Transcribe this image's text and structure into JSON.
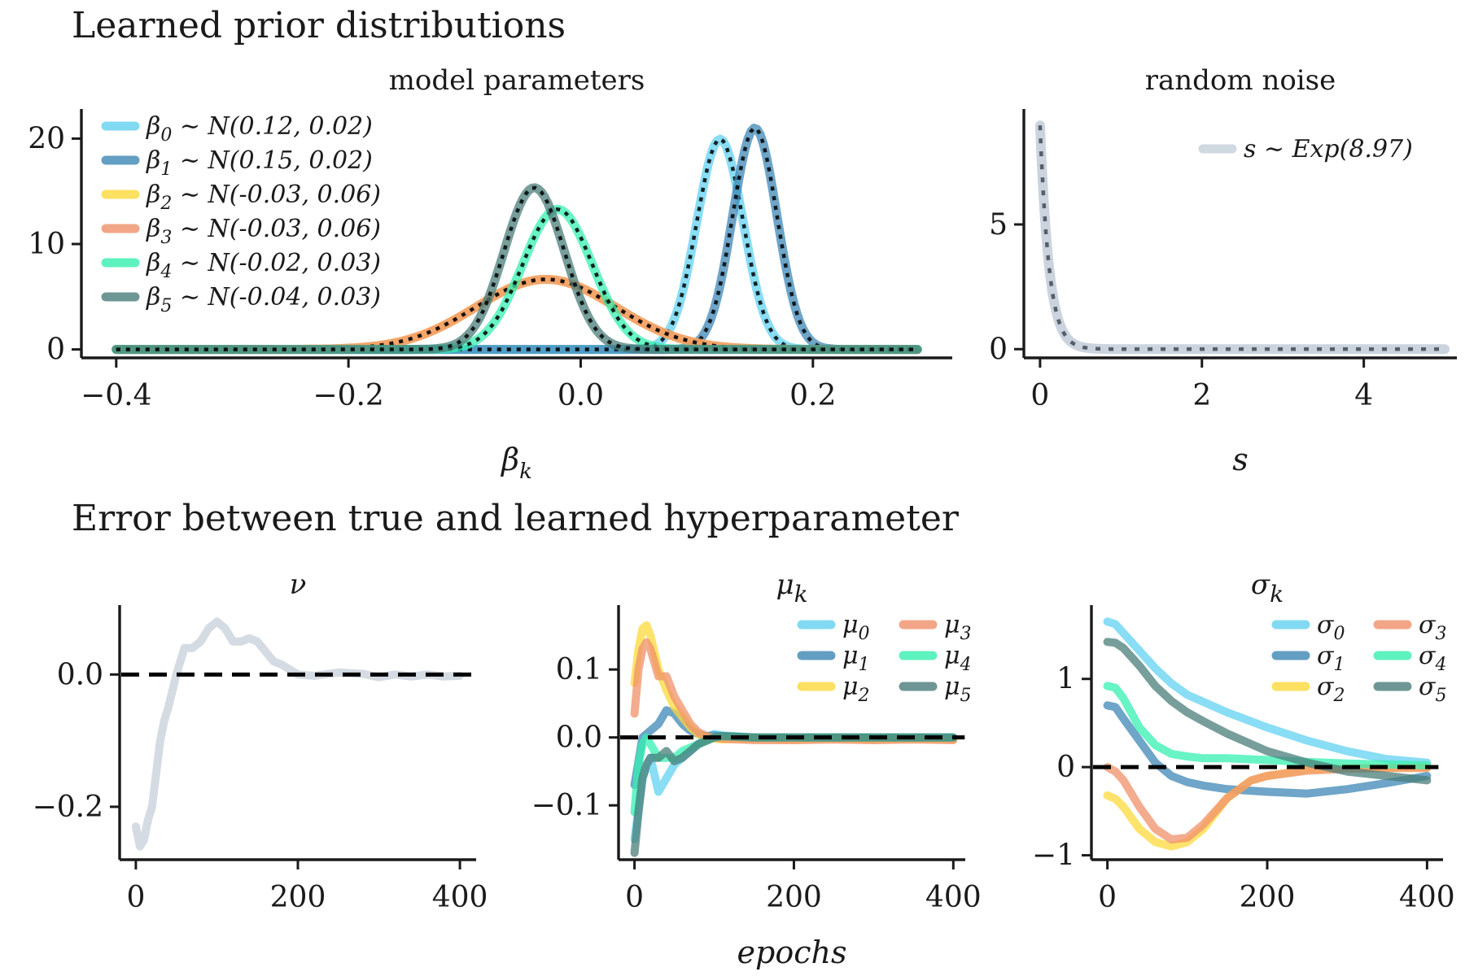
{
  "section_titles": {
    "top": "Learned prior distributions",
    "bottom": "Error between true and learned hyperparameter"
  },
  "colors": {
    "beta0": "#62d1f0",
    "beta1": "#3d87b5",
    "beta2": "#fcd93a",
    "beta3": "#f0906a",
    "beta4": "#36f0b0",
    "beta5": "#4a7d7a",
    "noise": "#c5cfda",
    "reference": "#000000"
  },
  "chart_data": [
    {
      "id": "model-parameters",
      "type": "line",
      "title": "model parameters",
      "xlabel": "β_k",
      "ylabel": "",
      "xlim": [
        -0.43,
        0.32
      ],
      "ylim": [
        -0.8,
        22.5
      ],
      "xticks": [
        -0.4,
        -0.2,
        0.0,
        0.2
      ],
      "xtick_labels": [
        "−0.4",
        "−0.2",
        "0.0",
        "0.2"
      ],
      "yticks": [
        0,
        10,
        20
      ],
      "ytick_labels": [
        "0",
        "10",
        "20"
      ],
      "x_domain": [
        -0.4,
        0.29
      ],
      "legend_position": "upper-left",
      "series": [
        {
          "name": "β0 ~ N(0.12, 0.02)",
          "label_main": "β",
          "label_sub": "0",
          "label_rest": " ∼ N(0.12, 0.02)",
          "mean": 0.12,
          "sd": 0.02,
          "color": "#62d1f0"
        },
        {
          "name": "β1 ~ N(0.15, 0.02)",
          "label_main": "β",
          "label_sub": "1",
          "label_rest": " ∼ N(0.15, 0.02)",
          "mean": 0.15,
          "sd": 0.019,
          "color": "#3d87b5"
        },
        {
          "name": "β2 ~ N(-0.03, 0.06)",
          "label_main": "β",
          "label_sub": "2",
          "label_rest": " ∼ N(-0.03, 0.06)",
          "mean": -0.03,
          "sd": 0.06,
          "color": "#fcd93a"
        },
        {
          "name": "β3 ~ N(-0.03, 0.06)",
          "label_main": "β",
          "label_sub": "3",
          "label_rest": " ∼ N(-0.03, 0.06)",
          "mean": -0.03,
          "sd": 0.06,
          "color": "#f0906a"
        },
        {
          "name": "β4 ~ N(-0.02, 0.03)",
          "label_main": "β",
          "label_sub": "4",
          "label_rest": " ∼ N(-0.02, 0.03)",
          "mean": -0.02,
          "sd": 0.03,
          "color": "#36f0b0"
        },
        {
          "name": "β5 ~ N(-0.04, 0.03)",
          "label_main": "β",
          "label_sub": "5",
          "label_rest": " ∼ N(-0.04, 0.03)",
          "mean": -0.04,
          "sd": 0.026,
          "color": "#4a7d7a"
        }
      ]
    },
    {
      "id": "random-noise",
      "type": "line",
      "title": "random noise",
      "xlabel": "s",
      "ylabel": "",
      "xlim": [
        -0.2,
        5.15
      ],
      "ylim": [
        -0.35,
        9.5
      ],
      "xticks": [
        0,
        2,
        4
      ],
      "xtick_labels": [
        "0",
        "2",
        "4"
      ],
      "yticks": [
        0,
        5
      ],
      "ytick_labels": [
        "0",
        "5"
      ],
      "x_domain": [
        0,
        5
      ],
      "legend_position": "upper-right",
      "series": [
        {
          "name": "s ~ Exp(8.97)",
          "label_main": "s ∼ Exp(8.97)",
          "rate": 8.97,
          "color": "#c5cfda"
        }
      ]
    },
    {
      "id": "nu-error",
      "type": "line",
      "title": "ν",
      "xlabel": "",
      "ylabel": "",
      "xlim": [
        -20,
        420
      ],
      "ylim": [
        -0.28,
        0.1
      ],
      "xticks": [
        0,
        200,
        400
      ],
      "xtick_labels": [
        "0",
        "200",
        "400"
      ],
      "yticks": [
        -0.2,
        0.0
      ],
      "ytick_labels": [
        "−0.2",
        "0.0"
      ],
      "series": [
        {
          "name": "ν",
          "color": "#c5cfda",
          "x": [
            0,
            5,
            10,
            15,
            20,
            25,
            30,
            35,
            40,
            50,
            60,
            70,
            80,
            90,
            100,
            110,
            120,
            130,
            140,
            150,
            160,
            170,
            180,
            200,
            220,
            250,
            280,
            300,
            320,
            340,
            360,
            380,
            400
          ],
          "y": [
            -0.23,
            -0.26,
            -0.25,
            -0.22,
            -0.2,
            -0.15,
            -0.1,
            -0.07,
            -0.05,
            0.0,
            0.04,
            0.04,
            0.05,
            0.07,
            0.08,
            0.07,
            0.05,
            0.05,
            0.055,
            0.05,
            0.035,
            0.02,
            0.015,
            0.0,
            -0.002,
            0.003,
            0.001,
            -0.004,
            0.0,
            -0.003,
            0.0,
            -0.003,
            -0.002
          ]
        }
      ]
    },
    {
      "id": "mu-error",
      "type": "line",
      "title": "μ_k",
      "xlabel": "epochs",
      "ylabel": "",
      "xlim": [
        -20,
        415
      ],
      "ylim": [
        -0.18,
        0.19
      ],
      "xticks": [
        0,
        200,
        400
      ],
      "xtick_labels": [
        "0",
        "200",
        "400"
      ],
      "yticks": [
        -0.1,
        0.0,
        0.1
      ],
      "ytick_labels": [
        "−0.1",
        "0.0",
        "0.1"
      ],
      "legend_position": "upper-right",
      "series": [
        {
          "name": "μ0",
          "label_main": "μ",
          "label_sub": "0",
          "color": "#62d1f0",
          "x": [
            0,
            10,
            20,
            30,
            40,
            50,
            60,
            70,
            80,
            90,
            100,
            110,
            150,
            200,
            250,
            300,
            350,
            400
          ],
          "y": [
            -0.15,
            -0.06,
            -0.03,
            -0.08,
            -0.06,
            -0.04,
            -0.03,
            -0.02,
            -0.01,
            0.0,
            0.005,
            0.003,
            0.0,
            0.0,
            0.0,
            0.0,
            0.0,
            0.0
          ]
        },
        {
          "name": "μ1",
          "label_main": "μ",
          "label_sub": "1",
          "color": "#3d87b5",
          "x": [
            0,
            10,
            20,
            30,
            40,
            50,
            60,
            70,
            80,
            90,
            100,
            110,
            150,
            200,
            250,
            300,
            350,
            400
          ],
          "y": [
            -0.07,
            0.0,
            0.01,
            0.02,
            0.04,
            0.035,
            0.02,
            0.01,
            0.005,
            0.002,
            0.003,
            0.002,
            0.0,
            0.0,
            0.0,
            0.0,
            0.0,
            0.0
          ]
        },
        {
          "name": "μ2",
          "label_main": "μ",
          "label_sub": "2",
          "color": "#fcd93a",
          "x": [
            0,
            5,
            10,
            15,
            20,
            30,
            40,
            50,
            60,
            70,
            80,
            90,
            100,
            110,
            150,
            200,
            250,
            300,
            350,
            400
          ],
          "y": [
            0.08,
            0.13,
            0.16,
            0.165,
            0.15,
            0.1,
            0.07,
            0.045,
            0.03,
            0.015,
            0.005,
            0.0,
            -0.002,
            -0.003,
            -0.002,
            -0.003,
            -0.002,
            -0.003,
            -0.002,
            -0.003
          ]
        },
        {
          "name": "μ3",
          "label_main": "μ",
          "label_sub": "3",
          "color": "#f0906a",
          "x": [
            0,
            5,
            10,
            15,
            20,
            30,
            40,
            50,
            60,
            70,
            80,
            90,
            100,
            110,
            150,
            200,
            250,
            300,
            350,
            400
          ],
          "y": [
            0.035,
            0.1,
            0.13,
            0.14,
            0.13,
            0.09,
            0.09,
            0.06,
            0.04,
            0.02,
            0.008,
            0.002,
            0.0,
            -0.002,
            -0.004,
            -0.004,
            -0.003,
            -0.004,
            -0.003,
            -0.004
          ]
        },
        {
          "name": "μ4",
          "label_main": "μ",
          "label_sub": "4",
          "color": "#36f0b0",
          "x": [
            0,
            5,
            10,
            15,
            20,
            30,
            40,
            50,
            60,
            70,
            80,
            90,
            100,
            110,
            150,
            200,
            250,
            300,
            350,
            400
          ],
          "y": [
            -0.11,
            -0.04,
            -0.01,
            0.0,
            -0.01,
            -0.03,
            -0.03,
            -0.03,
            -0.02,
            -0.015,
            -0.01,
            -0.005,
            0.0,
            0.002,
            0.0,
            0.0,
            0.0,
            0.0,
            0.0,
            0.0
          ]
        },
        {
          "name": "μ5",
          "label_main": "μ",
          "label_sub": "5",
          "color": "#4a7d7a",
          "x": [
            0,
            5,
            10,
            15,
            20,
            30,
            40,
            50,
            60,
            70,
            80,
            90,
            100,
            110,
            150,
            200,
            250,
            300,
            350,
            400
          ],
          "y": [
            -0.17,
            -0.11,
            -0.06,
            -0.04,
            -0.03,
            -0.03,
            -0.02,
            -0.035,
            -0.03,
            -0.02,
            -0.01,
            -0.005,
            0.0,
            0.002,
            0.0,
            0.0,
            0.0,
            0.0,
            0.0,
            0.0
          ]
        }
      ]
    },
    {
      "id": "sigma-error",
      "type": "line",
      "title": "σ_k",
      "xlabel": "",
      "ylabel": "",
      "xlim": [
        -20,
        420
      ],
      "ylim": [
        -1.05,
        1.8
      ],
      "xticks": [
        0,
        200,
        400
      ],
      "xtick_labels": [
        "0",
        "200",
        "400"
      ],
      "yticks": [
        -1,
        0,
        1
      ],
      "ytick_labels": [
        "−1",
        "0",
        "1"
      ],
      "legend_position": "upper-right",
      "series": [
        {
          "name": "σ0",
          "label_main": "σ",
          "label_sub": "0",
          "color": "#62d1f0",
          "x": [
            0,
            10,
            20,
            40,
            60,
            80,
            100,
            120,
            150,
            200,
            250,
            300,
            350,
            400
          ],
          "y": [
            1.65,
            1.62,
            1.52,
            1.32,
            1.12,
            0.95,
            0.82,
            0.74,
            0.62,
            0.45,
            0.3,
            0.18,
            0.09,
            0.05
          ]
        },
        {
          "name": "σ1",
          "label_main": "σ",
          "label_sub": "1",
          "color": "#3d87b5",
          "x": [
            0,
            10,
            20,
            40,
            60,
            80,
            100,
            120,
            150,
            200,
            250,
            300,
            350,
            400
          ],
          "y": [
            0.7,
            0.68,
            0.55,
            0.3,
            0.05,
            -0.1,
            -0.17,
            -0.21,
            -0.25,
            -0.28,
            -0.3,
            -0.25,
            -0.18,
            -0.1
          ]
        },
        {
          "name": "σ2",
          "label_main": "σ",
          "label_sub": "2",
          "color": "#fcd93a",
          "x": [
            0,
            10,
            20,
            40,
            60,
            80,
            100,
            120,
            150,
            180,
            200,
            250,
            300,
            350,
            400
          ],
          "y": [
            -0.32,
            -0.36,
            -0.45,
            -0.7,
            -0.85,
            -0.9,
            -0.85,
            -0.7,
            -0.35,
            -0.15,
            -0.1,
            -0.03,
            -0.01,
            -0.01,
            0.0
          ]
        },
        {
          "name": "σ3",
          "label_main": "σ",
          "label_sub": "3",
          "color": "#f0906a",
          "x": [
            0,
            10,
            20,
            40,
            60,
            80,
            100,
            120,
            150,
            180,
            200,
            250,
            300,
            350,
            400
          ],
          "y": [
            0.0,
            -0.05,
            -0.15,
            -0.45,
            -0.7,
            -0.82,
            -0.8,
            -0.65,
            -0.35,
            -0.15,
            -0.1,
            -0.04,
            -0.02,
            -0.01,
            -0.01
          ]
        },
        {
          "name": "σ4",
          "label_main": "σ",
          "label_sub": "4",
          "color": "#36f0b0",
          "x": [
            0,
            10,
            20,
            40,
            60,
            80,
            100,
            120,
            150,
            200,
            250,
            300,
            350,
            400
          ],
          "y": [
            0.92,
            0.9,
            0.78,
            0.45,
            0.25,
            0.15,
            0.12,
            0.1,
            0.1,
            0.08,
            0.06,
            0.04,
            0.03,
            0.02
          ]
        },
        {
          "name": "σ5",
          "label_main": "σ",
          "label_sub": "5",
          "color": "#4a7d7a",
          "x": [
            0,
            10,
            20,
            40,
            60,
            80,
            100,
            120,
            150,
            200,
            250,
            300,
            350,
            400
          ],
          "y": [
            1.42,
            1.41,
            1.35,
            1.15,
            0.92,
            0.75,
            0.62,
            0.52,
            0.38,
            0.18,
            0.05,
            -0.05,
            -0.1,
            -0.15
          ]
        }
      ]
    }
  ]
}
